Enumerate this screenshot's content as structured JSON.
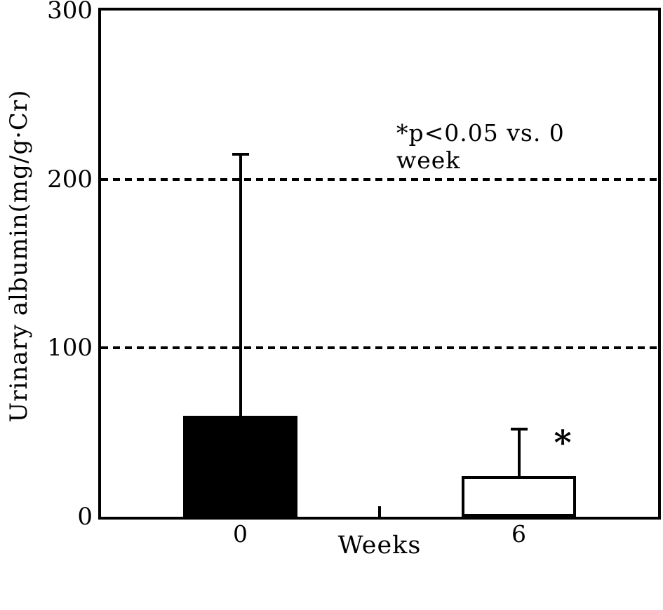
{
  "chart_data": {
    "type": "bar",
    "title": "",
    "xlabel": "Weeks",
    "ylabel": "Urinary albumin(mg/g·Cr)",
    "categories": [
      "0",
      "6"
    ],
    "values": [
      60,
      24
    ],
    "errors_upper": [
      155,
      28
    ],
    "bar_fills": [
      "#000000",
      "#ffffff"
    ],
    "bar_border": "#000000",
    "significance_markers": [
      "",
      "*"
    ],
    "annotation": "*p<0.05 vs. 0 week",
    "ylim": [
      0,
      300
    ],
    "yticks": [
      0,
      100,
      200,
      300
    ],
    "gridlines": [
      100,
      200
    ],
    "grid_style": "dashed",
    "legend": "none",
    "colors": {
      "ink": "#000000",
      "background": "#ffffff"
    }
  }
}
